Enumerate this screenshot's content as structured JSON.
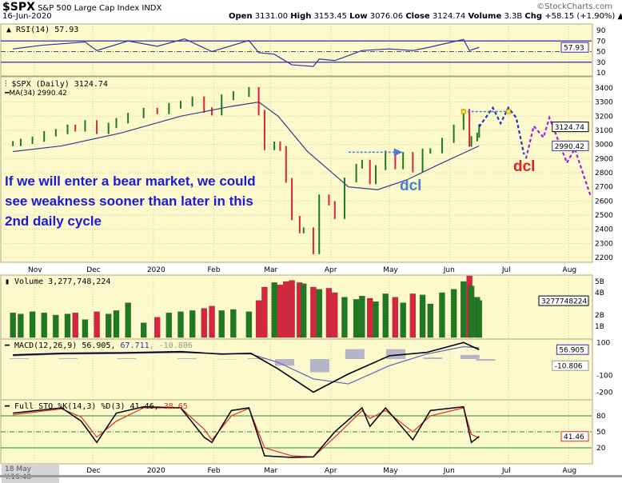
{
  "header": {
    "symbol": "$SPX",
    "name": "S&P 500 Large Cap Index",
    "exchange": "INDX",
    "date": "16-Jun-2020",
    "brand": "©StockCharts.com",
    "open_label": "Open",
    "open": "3131.00",
    "high_label": "High",
    "high": "3153.45",
    "low_label": "Low",
    "low": "3076.06",
    "close_label": "Close",
    "close": "3124.74",
    "volume_label": "Volume",
    "volume": "3.3B",
    "chg_label": "Chg",
    "chg": "+58.15 (+1.90%)"
  },
  "status": "18 May Y:16.48",
  "annotation": {
    "main_note": "If we will enter a bear market, we could see weakness sooner than later in this 2nd daily cycle",
    "dcl_blue": "dcl",
    "dcl_red": "dcl"
  },
  "colors": {
    "background": "#fcf9cc",
    "up": "#1e7a1e",
    "down": "#d8243c",
    "ma": "#3a3a8c",
    "annotation": "#1a1ad8",
    "dcl_blue": "#4a7fd0",
    "dcl_red": "#e02020",
    "projection_blue": "#2230c8",
    "projection_purple": "#a020e0",
    "rsi": "#3a2aa0",
    "sto_k": "#000000",
    "sto_d": "#e03020"
  },
  "chart_data": [
    {
      "type": "line",
      "panel": "rsi",
      "title": "RSI(14) 57.93",
      "current": "57.93",
      "yticks": [
        "90",
        "70",
        "50",
        "30",
        "10"
      ],
      "ylim": [
        0,
        100
      ],
      "reference_lines": [
        70,
        50,
        30
      ],
      "series": [
        {
          "name": "RSI(14)",
          "points": [
            [
              "2019-10-21",
              55
            ],
            [
              "2019-11-05",
              62
            ],
            [
              "2019-11-27",
              68
            ],
            [
              "2019-12-03",
              52
            ],
            [
              "2019-12-19",
              70
            ],
            [
              "2020-01-03",
              60
            ],
            [
              "2020-01-17",
              74
            ],
            [
              "2020-01-31",
              50
            ],
            [
              "2020-02-19",
              71
            ],
            [
              "2020-02-24",
              48
            ],
            [
              "2020-03-03",
              45
            ],
            [
              "2020-03-12",
              25
            ],
            [
              "2020-03-23",
              22
            ],
            [
              "2020-03-26",
              36
            ],
            [
              "2020-04-03",
              33
            ],
            [
              "2020-04-17",
              52
            ],
            [
              "2020-05-01",
              55
            ],
            [
              "2020-05-13",
              52
            ],
            [
              "2020-05-20",
              57
            ],
            [
              "2020-06-08",
              73
            ],
            [
              "2020-06-11",
              52
            ],
            [
              "2020-06-16",
              57.93
            ]
          ]
        }
      ]
    },
    {
      "type": "bar",
      "panel": "price",
      "title": "$SPX (Daily) 3124.74",
      "ma_label": "MA(34) 2990.42",
      "current_tag": "3124.74",
      "ma_tag": "2990.42",
      "ylim": [
        2150,
        3450
      ],
      "yticks": [
        "3400",
        "3300",
        "3200",
        "3100",
        "3000",
        "2900",
        "2800",
        "2700",
        "2600",
        "2500",
        "2400",
        "2300",
        "2200"
      ],
      "xticks": [
        [
          "2019-11-01",
          "Nov"
        ],
        [
          "2019-12-01",
          "Dec"
        ],
        [
          "2020-01-01",
          "2020"
        ],
        [
          "2020-02-01",
          "Feb"
        ],
        [
          "2020-03-01",
          "Mar"
        ],
        [
          "2020-04-01",
          "Apr"
        ],
        [
          "2020-05-01",
          "May"
        ],
        [
          "2020-06-01",
          "Jun"
        ],
        [
          "2020-07-01",
          "Jul"
        ],
        [
          "2020-08-01",
          "Aug"
        ]
      ],
      "closes": [
        [
          "2019-10-21",
          3006
        ],
        [
          "2019-10-25",
          3022
        ],
        [
          "2019-10-31",
          3037
        ],
        [
          "2019-11-06",
          3076
        ],
        [
          "2019-11-12",
          3091
        ],
        [
          "2019-11-18",
          3122
        ],
        [
          "2019-11-22",
          3110
        ],
        [
          "2019-11-27",
          3153
        ],
        [
          "2019-12-03",
          3093
        ],
        [
          "2019-12-09",
          3135
        ],
        [
          "2019-12-13",
          3168
        ],
        [
          "2019-12-19",
          3205
        ],
        [
          "2019-12-27",
          3240
        ],
        [
          "2020-01-03",
          3234
        ],
        [
          "2020-01-09",
          3274
        ],
        [
          "2020-01-15",
          3289
        ],
        [
          "2020-01-21",
          3320
        ],
        [
          "2020-01-27",
          3244
        ],
        [
          "2020-01-31",
          3225
        ],
        [
          "2020-02-05",
          3334
        ],
        [
          "2020-02-11",
          3357
        ],
        [
          "2020-02-19",
          3386
        ],
        [
          "2020-02-24",
          3225
        ],
        [
          "2020-02-27",
          2978
        ],
        [
          "2020-03-03",
          3003
        ],
        [
          "2020-03-06",
          2972
        ],
        [
          "2020-03-09",
          2746
        ],
        [
          "2020-03-12",
          2480
        ],
        [
          "2020-03-16",
          2386
        ],
        [
          "2020-03-18",
          2398
        ],
        [
          "2020-03-23",
          2237
        ],
        [
          "2020-03-26",
          2630
        ],
        [
          "2020-03-31",
          2584
        ],
        [
          "2020-04-03",
          2488
        ],
        [
          "2020-04-08",
          2749
        ],
        [
          "2020-04-14",
          2846
        ],
        [
          "2020-04-17",
          2874
        ],
        [
          "2020-04-21",
          2736
        ],
        [
          "2020-04-24",
          2836
        ],
        [
          "2020-04-29",
          2939
        ],
        [
          "2020-05-04",
          2842
        ],
        [
          "2020-05-08",
          2929
        ],
        [
          "2020-05-13",
          2820
        ],
        [
          "2020-05-18",
          2953
        ],
        [
          "2020-05-22",
          2955
        ],
        [
          "2020-05-28",
          3029
        ],
        [
          "2020-06-03",
          3122
        ],
        [
          "2020-06-08",
          3232
        ],
        [
          "2020-06-11",
          3002
        ],
        [
          "2020-06-12",
          3041
        ],
        [
          "2020-06-15",
          3066
        ],
        [
          "2020-06-16",
          3125
        ]
      ],
      "ma34": [
        [
          "2019-10-21",
          2950
        ],
        [
          "2019-11-15",
          2990
        ],
        [
          "2019-12-15",
          3080
        ],
        [
          "2020-01-15",
          3200
        ],
        [
          "2020-02-10",
          3270
        ],
        [
          "2020-02-24",
          3300
        ],
        [
          "2020-03-05",
          3200
        ],
        [
          "2020-03-20",
          2950
        ],
        [
          "2020-04-10",
          2700
        ],
        [
          "2020-04-25",
          2680
        ],
        [
          "2020-05-10",
          2750
        ],
        [
          "2020-05-25",
          2850
        ],
        [
          "2020-06-16",
          2990.42
        ]
      ],
      "projection_blue": [
        [
          "2020-06-16",
          3125
        ],
        [
          "2020-06-23",
          3260
        ],
        [
          "2020-06-27",
          3150
        ],
        [
          "2020-07-01",
          3260
        ],
        [
          "2020-07-05",
          3190
        ],
        [
          "2020-07-09",
          2930
        ]
      ],
      "projection_purple": [
        [
          "2020-07-10",
          2900
        ],
        [
          "2020-07-14",
          3130
        ],
        [
          "2020-07-19",
          3050
        ],
        [
          "2020-07-22",
          3190
        ],
        [
          "2020-07-31",
          2870
        ],
        [
          "2020-08-04",
          2970
        ],
        [
          "2020-08-12",
          2640
        ]
      ],
      "arrow_may": [
        [
          "2020-04-10",
          2945
        ],
        [
          "2020-05-07",
          2945
        ]
      ],
      "resistance": [
        [
          "2020-06-08",
          3233
        ],
        [
          "2020-07-01",
          3233
        ]
      ]
    },
    {
      "type": "bar",
      "panel": "volume",
      "title": "Volume 3,277,748,224",
      "current_tag": "3277748224",
      "yticks": [
        "5B",
        "4B",
        "2B",
        "1B"
      ],
      "unit": "B",
      "values": [
        2.2,
        2.1,
        2.3,
        2.2,
        2.0,
        2.1,
        2.2,
        1.6,
        2.3,
        2.1,
        2.4,
        3.1,
        1.3,
        1.8,
        2.2,
        2.3,
        2.4,
        2.6,
        2.8,
        2.4,
        2.5,
        2.3,
        3.3,
        4.5,
        4.9,
        4.7,
        5.0,
        5.1,
        4.9,
        4.8,
        4.5,
        4.3,
        4.4,
        4.0,
        3.6,
        3.4,
        3.7,
        3.5,
        3.2,
        3.9,
        3.6,
        3.1,
        3.9,
        3.8,
        3.0,
        4.0,
        4.3,
        5.0,
        5.5,
        4.6,
        3.6,
        3.3
      ]
    },
    {
      "type": "line",
      "panel": "macd",
      "title_prefix": "MACD(12,26,9) 56.905,",
      "signal_value": "67.711",
      "hist_value": ", -10.806",
      "tags": [
        "56.905",
        "-10.806"
      ],
      "yticks": [
        "100",
        "-100",
        "-200"
      ],
      "points": [
        [
          "2019-10-21",
          25,
          20
        ],
        [
          "2019-11-15",
          35,
          30
        ],
        [
          "2019-12-15",
          38,
          33
        ],
        [
          "2020-01-15",
          45,
          40
        ],
        [
          "2020-02-05",
          30,
          32
        ],
        [
          "2020-02-20",
          35,
          30
        ],
        [
          "2020-03-05",
          -60,
          -20
        ],
        [
          "2020-03-23",
          -200,
          -120
        ],
        [
          "2020-04-10",
          -90,
          -150
        ],
        [
          "2020-05-01",
          20,
          -40
        ],
        [
          "2020-05-20",
          40,
          30
        ],
        [
          "2020-06-08",
          100,
          75
        ],
        [
          "2020-06-16",
          56.905,
          67.711
        ]
      ]
    },
    {
      "type": "line",
      "panel": "sto",
      "title_prefix": "Full STO %K(14,3) %D(3) 41.46,",
      "d_value": "38.65",
      "tag": "41.46",
      "yticks": [
        "80",
        "50",
        "20"
      ],
      "reference_lines": [
        80,
        50,
        20
      ],
      "points": [
        [
          "2019-10-21",
          85,
          82
        ],
        [
          "2019-11-15",
          95,
          93
        ],
        [
          "2019-11-25",
          70,
          78
        ],
        [
          "2019-12-03",
          30,
          40
        ],
        [
          "2019-12-13",
          85,
          70
        ],
        [
          "2019-12-27",
          97,
          95
        ],
        [
          "2020-01-15",
          95,
          95
        ],
        [
          "2020-01-27",
          40,
          55
        ],
        [
          "2020-01-31",
          30,
          35
        ],
        [
          "2020-02-10",
          90,
          80
        ],
        [
          "2020-02-19",
          95,
          94
        ],
        [
          "2020-02-27",
          5,
          20
        ],
        [
          "2020-03-12",
          2,
          5
        ],
        [
          "2020-03-23",
          3,
          3
        ],
        [
          "2020-04-03",
          50,
          40
        ],
        [
          "2020-04-17",
          95,
          90
        ],
        [
          "2020-04-21",
          60,
          75
        ],
        [
          "2020-04-29",
          95,
          90
        ],
        [
          "2020-05-13",
          35,
          50
        ],
        [
          "2020-05-22",
          90,
          80
        ],
        [
          "2020-06-08",
          97,
          95
        ],
        [
          "2020-06-12",
          30,
          45
        ],
        [
          "2020-06-16",
          41.46,
          38.65
        ]
      ]
    }
  ]
}
